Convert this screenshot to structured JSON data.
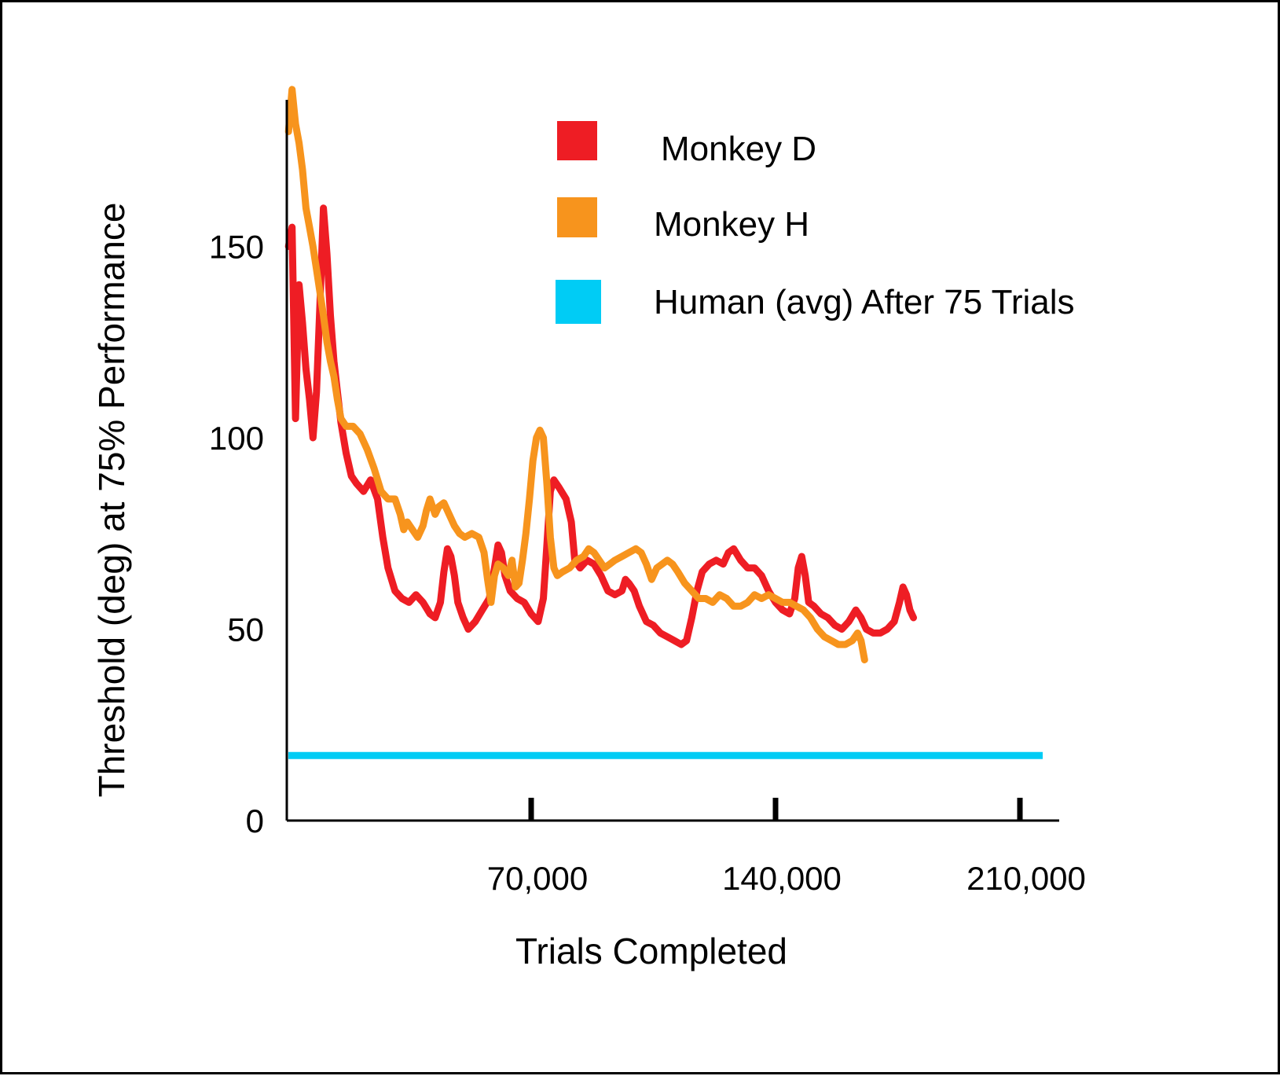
{
  "chart_data": {
    "type": "line",
    "xlabel": "Trials Completed",
    "ylabel": "Threshold (deg) at 75% Performance",
    "xlim": [
      0,
      250000
    ],
    "ylim": [
      0,
      190
    ],
    "x_ticks": [
      {
        "value": 70000,
        "label": "70,000"
      },
      {
        "value": 140000,
        "label": "140,000"
      },
      {
        "value": 210000,
        "label": "210,000"
      }
    ],
    "y_ticks": [
      {
        "value": 0,
        "label": "0"
      },
      {
        "value": 50,
        "label": "50"
      },
      {
        "value": 100,
        "label": "100"
      },
      {
        "value": 150,
        "label": "150"
      }
    ],
    "grid": false,
    "legend_position": "top-right",
    "series": [
      {
        "name": "Monkey D",
        "color": "#ee1d24",
        "type": "line",
        "points": [
          [
            500,
            150
          ],
          [
            1500,
            155
          ],
          [
            2500,
            105
          ],
          [
            3500,
            140
          ],
          [
            4500,
            130
          ],
          [
            5500,
            118
          ],
          [
            6500,
            110
          ],
          [
            7500,
            100
          ],
          [
            8500,
            112
          ],
          [
            9500,
            135
          ],
          [
            10500,
            160
          ],
          [
            11500,
            148
          ],
          [
            12500,
            132
          ],
          [
            13500,
            120
          ],
          [
            14500,
            112
          ],
          [
            15500,
            104
          ],
          [
            17000,
            96
          ],
          [
            18500,
            90
          ],
          [
            20000,
            88
          ],
          [
            22000,
            86
          ],
          [
            24000,
            89
          ],
          [
            26000,
            84
          ],
          [
            27500,
            74
          ],
          [
            29000,
            66
          ],
          [
            31000,
            60
          ],
          [
            33000,
            58
          ],
          [
            35000,
            57
          ],
          [
            37000,
            59
          ],
          [
            39000,
            57
          ],
          [
            41000,
            54
          ],
          [
            42500,
            53
          ],
          [
            44000,
            57
          ],
          [
            45000,
            65
          ],
          [
            46000,
            71
          ],
          [
            47000,
            69
          ],
          [
            48000,
            64
          ],
          [
            49000,
            57
          ],
          [
            50500,
            53
          ],
          [
            52000,
            50
          ],
          [
            54000,
            52
          ],
          [
            56000,
            55
          ],
          [
            58000,
            58
          ],
          [
            59500,
            66
          ],
          [
            60500,
            72
          ],
          [
            61500,
            70
          ],
          [
            62500,
            64
          ],
          [
            64000,
            60
          ],
          [
            66000,
            58
          ],
          [
            68000,
            57
          ],
          [
            70000,
            54
          ],
          [
            72000,
            52
          ],
          [
            73500,
            58
          ],
          [
            74500,
            72
          ],
          [
            75500,
            86
          ],
          [
            76500,
            89
          ],
          [
            78000,
            87
          ],
          [
            80000,
            84
          ],
          [
            81500,
            78
          ],
          [
            82500,
            68
          ],
          [
            84000,
            66
          ],
          [
            86000,
            68
          ],
          [
            88000,
            67
          ],
          [
            90000,
            64
          ],
          [
            92000,
            60
          ],
          [
            94000,
            59
          ],
          [
            96000,
            60
          ],
          [
            97000,
            63
          ],
          [
            98000,
            62
          ],
          [
            99500,
            60
          ],
          [
            101000,
            56
          ],
          [
            103000,
            52
          ],
          [
            105000,
            51
          ],
          [
            107000,
            49
          ],
          [
            109000,
            48
          ],
          [
            111000,
            47
          ],
          [
            113000,
            46
          ],
          [
            114500,
            47
          ],
          [
            116000,
            53
          ],
          [
            117500,
            60
          ],
          [
            119000,
            65
          ],
          [
            121000,
            67
          ],
          [
            123000,
            68
          ],
          [
            125000,
            67
          ],
          [
            126500,
            70
          ],
          [
            128000,
            71
          ],
          [
            130000,
            68
          ],
          [
            132000,
            66
          ],
          [
            134000,
            66
          ],
          [
            136000,
            64
          ],
          [
            138000,
            60
          ],
          [
            140000,
            57
          ],
          [
            142000,
            55
          ],
          [
            144000,
            54
          ],
          [
            145500,
            58
          ],
          [
            146500,
            66
          ],
          [
            147500,
            69
          ],
          [
            148500,
            64
          ],
          [
            149500,
            57
          ],
          [
            151000,
            56
          ],
          [
            153000,
            54
          ],
          [
            155000,
            53
          ],
          [
            157000,
            51
          ],
          [
            159000,
            50
          ],
          [
            161000,
            52
          ],
          [
            163000,
            55
          ],
          [
            164500,
            53
          ],
          [
            166000,
            50
          ],
          [
            168000,
            49
          ],
          [
            170000,
            49
          ],
          [
            172000,
            50
          ],
          [
            174000,
            52
          ],
          [
            175500,
            57
          ],
          [
            176500,
            61
          ],
          [
            177500,
            59
          ],
          [
            178500,
            55
          ],
          [
            179500,
            53
          ]
        ]
      },
      {
        "name": "Monkey H",
        "color": "#f7941d",
        "type": "line",
        "points": [
          [
            500,
            180
          ],
          [
            1500,
            191
          ],
          [
            2500,
            182
          ],
          [
            3500,
            177
          ],
          [
            4500,
            170
          ],
          [
            5500,
            160
          ],
          [
            6500,
            155
          ],
          [
            7500,
            150
          ],
          [
            8500,
            144
          ],
          [
            9500,
            138
          ],
          [
            10500,
            132
          ],
          [
            11500,
            125
          ],
          [
            12500,
            120
          ],
          [
            13500,
            116
          ],
          [
            14500,
            110
          ],
          [
            15500,
            105
          ],
          [
            17000,
            103
          ],
          [
            19000,
            103
          ],
          [
            21000,
            101
          ],
          [
            23000,
            97
          ],
          [
            25000,
            92
          ],
          [
            27000,
            86
          ],
          [
            29000,
            84
          ],
          [
            31000,
            84
          ],
          [
            32500,
            80
          ],
          [
            33500,
            76
          ],
          [
            34500,
            78
          ],
          [
            36000,
            76
          ],
          [
            37500,
            74
          ],
          [
            39000,
            77
          ],
          [
            40000,
            81
          ],
          [
            41000,
            84
          ],
          [
            42500,
            80
          ],
          [
            43500,
            82
          ],
          [
            45000,
            83
          ],
          [
            46500,
            80
          ],
          [
            48000,
            77
          ],
          [
            49500,
            75
          ],
          [
            51000,
            74
          ],
          [
            53000,
            75
          ],
          [
            55000,
            74
          ],
          [
            56500,
            70
          ],
          [
            57500,
            63
          ],
          [
            58500,
            57
          ],
          [
            59500,
            64
          ],
          [
            60500,
            67
          ],
          [
            62000,
            66
          ],
          [
            63500,
            64
          ],
          [
            64500,
            68
          ],
          [
            65500,
            61
          ],
          [
            66500,
            62
          ],
          [
            67500,
            68
          ],
          [
            68500,
            75
          ],
          [
            69500,
            84
          ],
          [
            70500,
            94
          ],
          [
            71500,
            100
          ],
          [
            72500,
            102
          ],
          [
            73500,
            100
          ],
          [
            74500,
            88
          ],
          [
            75500,
            74
          ],
          [
            76500,
            66
          ],
          [
            77500,
            64
          ],
          [
            79000,
            65
          ],
          [
            81000,
            66
          ],
          [
            83000,
            68
          ],
          [
            85000,
            69
          ],
          [
            86500,
            71
          ],
          [
            88000,
            70
          ],
          [
            89500,
            68
          ],
          [
            91000,
            66
          ],
          [
            92500,
            67
          ],
          [
            94000,
            68
          ],
          [
            96000,
            69
          ],
          [
            98000,
            70
          ],
          [
            100000,
            71
          ],
          [
            101500,
            70
          ],
          [
            103000,
            67
          ],
          [
            104500,
            63
          ],
          [
            106000,
            66
          ],
          [
            107500,
            67
          ],
          [
            109000,
            68
          ],
          [
            110500,
            67
          ],
          [
            112000,
            65
          ],
          [
            114000,
            62
          ],
          [
            116000,
            60
          ],
          [
            118000,
            58
          ],
          [
            120000,
            58
          ],
          [
            122000,
            57
          ],
          [
            124000,
            59
          ],
          [
            126000,
            58
          ],
          [
            128000,
            56
          ],
          [
            130000,
            56
          ],
          [
            132000,
            57
          ],
          [
            134000,
            59
          ],
          [
            136000,
            58
          ],
          [
            138000,
            59
          ],
          [
            140000,
            58
          ],
          [
            142000,
            57
          ],
          [
            144000,
            57
          ],
          [
            146000,
            56
          ],
          [
            148000,
            55
          ],
          [
            150000,
            53
          ],
          [
            152000,
            50
          ],
          [
            154000,
            48
          ],
          [
            156000,
            47
          ],
          [
            158000,
            46
          ],
          [
            160000,
            46
          ],
          [
            162000,
            47
          ],
          [
            163500,
            49
          ],
          [
            164500,
            47
          ],
          [
            165500,
            42
          ]
        ]
      },
      {
        "name": "Human (avg) After 75 Trials",
        "color": "#00ccf5",
        "type": "hline",
        "value": 17
      }
    ]
  }
}
